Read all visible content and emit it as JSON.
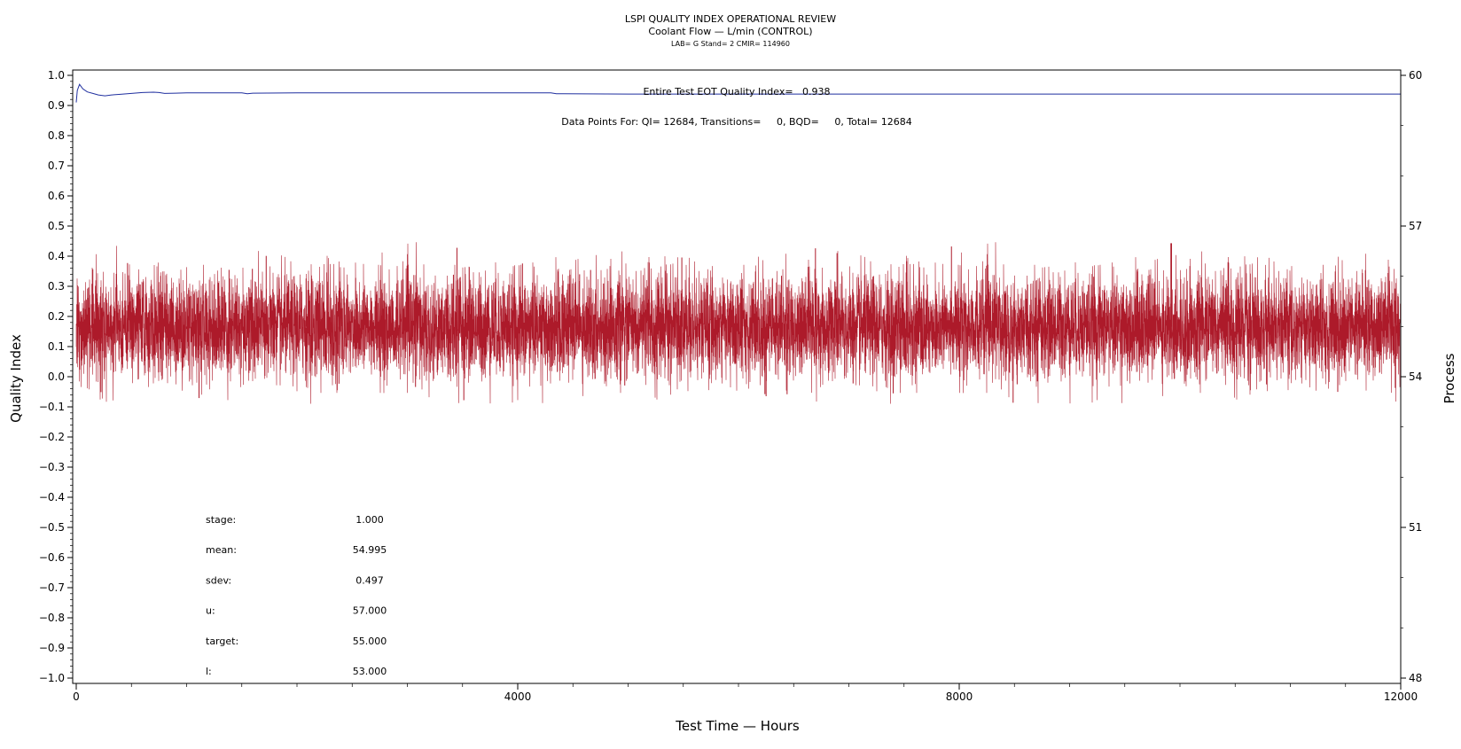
{
  "chart_data": {
    "type": "line",
    "title": "LSPI QUALITY INDEX OPERATIONAL REVIEW",
    "subtitle": "Coolant Flow — L/min (CONTROL)",
    "subtitle2": "LAB= G Stand= 2 CMIR= 114960",
    "xlabel": "Test Time — Hours",
    "ylabel": "Quality Index",
    "y2label": "Process",
    "xlim": [
      0,
      12000
    ],
    "ylim": [
      -1.0,
      1.0
    ],
    "y2lim": [
      48,
      60
    ],
    "x_ticks": [
      {
        "value": 0,
        "label": "0"
      },
      {
        "value": 4000,
        "label": "4000"
      },
      {
        "value": 8000,
        "label": "8000"
      },
      {
        "value": 12000,
        "label": "12000"
      }
    ],
    "y_ticks": [
      {
        "value": 1.0,
        "label": "1.0"
      },
      {
        "value": 0.9,
        "label": "0.9"
      },
      {
        "value": 0.8,
        "label": "0.8"
      },
      {
        "value": 0.7,
        "label": "0.7"
      },
      {
        "value": 0.6,
        "label": "0.6"
      },
      {
        "value": 0.5,
        "label": "0.5"
      },
      {
        "value": 0.4,
        "label": "0.4"
      },
      {
        "value": 0.3,
        "label": "0.3"
      },
      {
        "value": 0.2,
        "label": "0.2"
      },
      {
        "value": 0.1,
        "label": "0.1"
      },
      {
        "value": 0.0,
        "label": "0.0"
      },
      {
        "value": -0.1,
        "label": "−0.1"
      },
      {
        "value": -0.2,
        "label": "−0.2"
      },
      {
        "value": -0.3,
        "label": "−0.3"
      },
      {
        "value": -0.4,
        "label": "−0.4"
      },
      {
        "value": -0.5,
        "label": "−0.5"
      },
      {
        "value": -0.6,
        "label": "−0.6"
      },
      {
        "value": -0.7,
        "label": "−0.7"
      },
      {
        "value": -0.8,
        "label": "−0.8"
      },
      {
        "value": -0.9,
        "label": "−0.9"
      },
      {
        "value": -1.0,
        "label": "−1.0"
      }
    ],
    "y2_ticks": [
      {
        "value": 60,
        "label": "60"
      },
      {
        "value": 57,
        "label": "57"
      },
      {
        "value": 54,
        "label": "54"
      },
      {
        "value": 51,
        "label": "51"
      },
      {
        "value": 48,
        "label": "48"
      }
    ],
    "annotations": {
      "eot_quality_index": "Entire Test EOT Quality Index=   0.938",
      "data_points": "Data Points For: QI= 12684, Transitions=     0, BQD=     0, Total= 12684"
    },
    "stats": [
      {
        "label": "stage:",
        "value": "1.000"
      },
      {
        "label": "mean:",
        "value": "54.995"
      },
      {
        "label": "sdev:",
        "value": "0.497"
      },
      {
        "label": "u:",
        "value": "57.000"
      },
      {
        "label": "target:",
        "value": "55.000"
      },
      {
        "label": "l:",
        "value": "53.000"
      }
    ],
    "series": [
      {
        "axis": "left",
        "color": "#1f2f9f",
        "points": [
          [
            0,
            0.91
          ],
          [
            10,
            0.95
          ],
          [
            30,
            0.97
          ],
          [
            60,
            0.955
          ],
          [
            100,
            0.945
          ],
          [
            150,
            0.94
          ],
          [
            200,
            0.935
          ],
          [
            260,
            0.932
          ],
          [
            320,
            0.935
          ],
          [
            400,
            0.937
          ],
          [
            500,
            0.94
          ],
          [
            600,
            0.943
          ],
          [
            700,
            0.944
          ],
          [
            750,
            0.943
          ],
          [
            800,
            0.94
          ],
          [
            900,
            0.941
          ],
          [
            1000,
            0.942
          ],
          [
            1500,
            0.942
          ],
          [
            1550,
            0.939
          ],
          [
            1600,
            0.941
          ],
          [
            2000,
            0.942
          ],
          [
            3000,
            0.942
          ],
          [
            4300,
            0.942
          ],
          [
            4350,
            0.939
          ],
          [
            5000,
            0.938
          ],
          [
            6000,
            0.938
          ],
          [
            8000,
            0.938
          ],
          [
            10000,
            0.938
          ],
          [
            12000,
            0.938
          ]
        ]
      },
      {
        "axis": "right",
        "color": "#ad1a2a",
        "n_points": 12684,
        "mean": 54.995,
        "sdev": 0.497,
        "min": 53.45,
        "max": 56.72
      }
    ],
    "colors": {
      "qi_line": "#1f2f9f",
      "process_data": "#ad1a2a",
      "axis": "#000000"
    },
    "grid": false
  }
}
